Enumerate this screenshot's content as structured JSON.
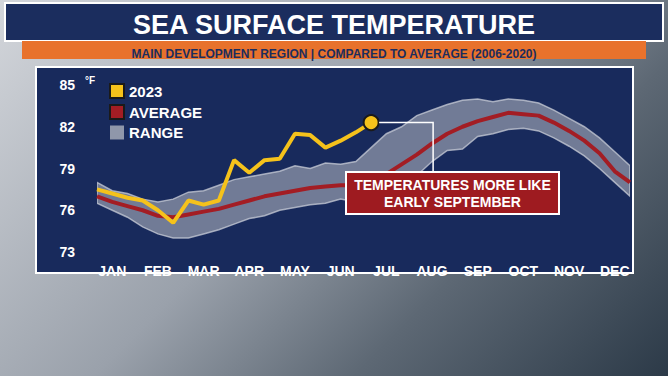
{
  "chart_data": {
    "type": "line",
    "title": "SEA SURFACE TEMPERATURE",
    "subtitle": "MAIN DEVELOPMENT REGION | COMPARED TO AVERAGE (2006-2020)",
    "y_label": "°F",
    "categories": [
      null,
      "JAN",
      null,
      null,
      "FEB",
      null,
      null,
      "MAR",
      null,
      null,
      "APR",
      null,
      null,
      "MAY",
      null,
      null,
      "JUN",
      null,
      null,
      "JUL",
      null,
      null,
      "AUG",
      null,
      null,
      "SEP",
      null,
      null,
      "OCT",
      null,
      null,
      "NOV",
      null,
      null,
      "DEC",
      null
    ],
    "series": [
      {
        "name": "2023",
        "color": "#f5c21b",
        "values": [
          77.5,
          77.2,
          76.9,
          76.7,
          76.0,
          75.1,
          76.7,
          76.4,
          76.7,
          79.6,
          78.7,
          79.6,
          79.7,
          81.5,
          81.4,
          80.5,
          81.0,
          81.6,
          82.3,
          null,
          null,
          null,
          null,
          null,
          null,
          null,
          null,
          null,
          null,
          null,
          null,
          null,
          null,
          null,
          null,
          null
        ]
      },
      {
        "name": "AVERAGE",
        "color": "#a31d24",
        "values": [
          77.0,
          76.6,
          76.3,
          76.0,
          75.6,
          75.5,
          75.7,
          75.9,
          76.1,
          76.4,
          76.7,
          77.0,
          77.2,
          77.4,
          77.6,
          77.7,
          77.8,
          77.8,
          78.0,
          78.6,
          79.3,
          80.0,
          80.8,
          81.5,
          82.0,
          82.4,
          82.7,
          83.0,
          82.9,
          82.8,
          82.3,
          81.7,
          81.0,
          80.1,
          78.8,
          78.0
        ]
      },
      {
        "name": "RANGE",
        "color": "#8f97aa",
        "type": "range",
        "low": [
          76.5,
          76.0,
          75.5,
          74.8,
          74.3,
          74.0,
          74.0,
          74.3,
          74.6,
          75.0,
          75.4,
          75.6,
          76.0,
          76.2,
          76.4,
          76.5,
          76.8,
          76.6,
          77.0,
          77.4,
          78.0,
          78.5,
          79.5,
          80.3,
          80.4,
          81.3,
          81.5,
          81.8,
          81.9,
          81.7,
          81.2,
          80.6,
          79.9,
          79.0,
          78.0,
          77.0
        ],
        "high": [
          78.0,
          77.4,
          77.2,
          76.8,
          76.6,
          76.8,
          77.3,
          77.4,
          77.8,
          78.2,
          78.4,
          78.6,
          78.8,
          79.2,
          79.0,
          79.4,
          79.3,
          79.5,
          80.5,
          81.5,
          82.0,
          82.8,
          83.2,
          83.6,
          83.9,
          84.0,
          83.8,
          84.0,
          83.9,
          83.7,
          83.2,
          82.6,
          82.0,
          81.2,
          80.2,
          79.2
        ]
      }
    ],
    "ylim": [
      73,
      85
    ],
    "yticks": [
      73,
      76,
      79,
      82,
      85
    ],
    "grid": false,
    "legend": "upper left",
    "annotation": [
      "TEMPERATURES MORE LIKE",
      "EARLY SEPTEMBER"
    ]
  }
}
